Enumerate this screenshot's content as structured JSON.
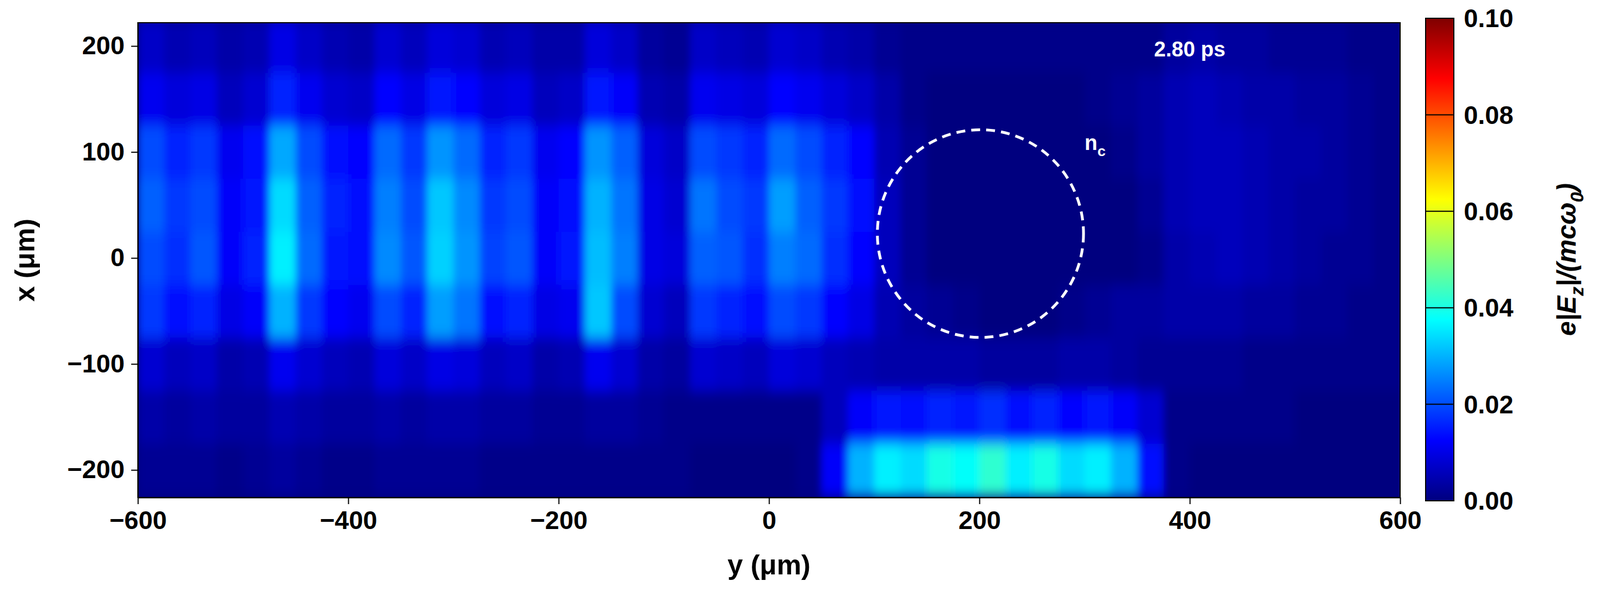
{
  "chart_data": {
    "type": "heatmap",
    "x_label": "y (μm)",
    "y_label": "x (μm)",
    "xlim": [
      -600,
      600
    ],
    "ylim": [
      -226,
      222
    ],
    "xticks": [
      {
        "value": -600,
        "label": "−600"
      },
      {
        "value": -400,
        "label": "−400"
      },
      {
        "value": -200,
        "label": "−200"
      },
      0,
      200,
      400,
      600
    ],
    "yticks": [
      {
        "value": -200,
        "label": "−200"
      },
      {
        "value": -100,
        "label": "−100"
      },
      0,
      100,
      200
    ],
    "x_bins": [
      -600,
      -575,
      -550,
      -525,
      -500,
      -475,
      -450,
      -425,
      -400,
      -375,
      -350,
      -325,
      -300,
      -275,
      -250,
      -225,
      -200,
      -175,
      -150,
      -125,
      -100,
      -75,
      -50,
      -25,
      0,
      25,
      50,
      75,
      100,
      125,
      150,
      175,
      200,
      225,
      250,
      275,
      300,
      325,
      350,
      375,
      400,
      425,
      450,
      475,
      500,
      525,
      550,
      575,
      600
    ],
    "y_bins": [
      -225,
      -175,
      -125,
      -75,
      -25,
      25,
      75,
      125,
      175,
      225
    ],
    "z": [
      [
        0.002,
        0.002,
        0.002,
        0.001,
        0.002,
        0.003,
        0.002,
        0.001,
        0.001,
        0.002,
        0.002,
        0.002,
        0.002,
        0.001,
        0.001,
        0.001,
        0.001,
        0.001,
        0.001,
        0.001,
        0.001,
        0,
        0,
        0,
        0,
        0.001,
        0.012,
        0.03,
        0.036,
        0.034,
        0.04,
        0.038,
        0.042,
        0.036,
        0.04,
        0.034,
        0.036,
        0.03,
        0.014,
        0.001,
        0,
        0,
        0,
        0,
        0,
        0,
        0,
        0
      ],
      [
        0.004,
        0.003,
        0.004,
        0.003,
        0.003,
        0.005,
        0.004,
        0.003,
        0.003,
        0.004,
        0.003,
        0.004,
        0.004,
        0.003,
        0.003,
        0.002,
        0.002,
        0.003,
        0.003,
        0.002,
        0.001,
        0.001,
        0.001,
        0.001,
        0.001,
        0.001,
        0.006,
        0.012,
        0.015,
        0.014,
        0.016,
        0.015,
        0.017,
        0.014,
        0.016,
        0.013,
        0.015,
        0.012,
        0.008,
        0.001,
        0.001,
        0.001,
        0.001,
        0.001,
        0,
        0,
        0,
        0
      ],
      [
        0.008,
        0.006,
        0.007,
        0.004,
        0.005,
        0.011,
        0.008,
        0.006,
        0.005,
        0.009,
        0.007,
        0.01,
        0.009,
        0.006,
        0.007,
        0.004,
        0.005,
        0.011,
        0.008,
        0.004,
        0.003,
        0.008,
        0.007,
        0.006,
        0.009,
        0.008,
        0.006,
        0.005,
        0.004,
        0.004,
        0.004,
        0.004,
        0.003,
        0.003,
        0.003,
        0.004,
        0.004,
        0.003,
        0.002,
        0.002,
        0.002,
        0.002,
        0.001,
        0.001,
        0.001,
        0.001,
        0.001,
        0.001
      ],
      [
        0.018,
        0.014,
        0.016,
        0.01,
        0.012,
        0.03,
        0.018,
        0.013,
        0.011,
        0.02,
        0.016,
        0.028,
        0.024,
        0.014,
        0.016,
        0.01,
        0.011,
        0.032,
        0.02,
        0.008,
        0.006,
        0.018,
        0.016,
        0.014,
        0.02,
        0.018,
        0.013,
        0.01,
        0.005,
        0.003,
        0.002,
        0.001,
        0,
        0,
        0,
        0.001,
        0.002,
        0.003,
        0.003,
        0.004,
        0.004,
        0.004,
        0.003,
        0.003,
        0.002,
        0.002,
        0.001,
        0.001
      ],
      [
        0.02,
        0.017,
        0.021,
        0.012,
        0.016,
        0.036,
        0.023,
        0.015,
        0.014,
        0.026,
        0.021,
        0.033,
        0.027,
        0.019,
        0.021,
        0.012,
        0.015,
        0.031,
        0.025,
        0.01,
        0.009,
        0.022,
        0.021,
        0.017,
        0.025,
        0.023,
        0.017,
        0.013,
        0.006,
        0.002,
        0,
        0,
        0,
        0,
        0,
        0,
        0,
        0,
        0.001,
        0.004,
        0.005,
        0.006,
        0.005,
        0.004,
        0.003,
        0.002,
        0.002,
        0.001
      ],
      [
        0.022,
        0.018,
        0.02,
        0.012,
        0.015,
        0.034,
        0.022,
        0.016,
        0.014,
        0.025,
        0.02,
        0.032,
        0.026,
        0.018,
        0.02,
        0.012,
        0.014,
        0.03,
        0.024,
        0.01,
        0.008,
        0.024,
        0.02,
        0.018,
        0.028,
        0.022,
        0.018,
        0.014,
        0.006,
        0.002,
        0,
        0,
        0,
        0,
        0,
        0,
        0,
        0,
        0.002,
        0.005,
        0.006,
        0.006,
        0.005,
        0.004,
        0.003,
        0.003,
        0.002,
        0.001
      ],
      [
        0.02,
        0.016,
        0.018,
        0.011,
        0.014,
        0.029,
        0.02,
        0.014,
        0.013,
        0.023,
        0.018,
        0.027,
        0.023,
        0.016,
        0.018,
        0.011,
        0.013,
        0.027,
        0.022,
        0.009,
        0.007,
        0.02,
        0.018,
        0.016,
        0.023,
        0.02,
        0.016,
        0.013,
        0.005,
        0.002,
        0,
        0,
        0,
        0,
        0,
        0,
        0,
        0.001,
        0.003,
        0.005,
        0.006,
        0.006,
        0.005,
        0.004,
        0.004,
        0.003,
        0.002,
        0.001
      ],
      [
        0.011,
        0.009,
        0.01,
        0.006,
        0.008,
        0.016,
        0.011,
        0.008,
        0.007,
        0.013,
        0.01,
        0.015,
        0.013,
        0.009,
        0.01,
        0.006,
        0.007,
        0.015,
        0.012,
        0.005,
        0.004,
        0.011,
        0.01,
        0.009,
        0.013,
        0.011,
        0.009,
        0.007,
        0.004,
        0.001,
        0,
        0,
        0,
        0,
        0,
        0,
        0.001,
        0.002,
        0.003,
        0.005,
        0.006,
        0.005,
        0.004,
        0.004,
        0.003,
        0.003,
        0.002,
        0.001
      ],
      [
        0.007,
        0.005,
        0.006,
        0.004,
        0.005,
        0.01,
        0.007,
        0.005,
        0.004,
        0.008,
        0.006,
        0.009,
        0.008,
        0.005,
        0.006,
        0.004,
        0.004,
        0.009,
        0.007,
        0.003,
        0.002,
        0.007,
        0.006,
        0.005,
        0.008,
        0.007,
        0.005,
        0.004,
        0.002,
        0.001,
        0.001,
        0.001,
        0.001,
        0.001,
        0.001,
        0.001,
        0.001,
        0.001,
        0.001,
        0.003,
        0.004,
        0.003,
        0.003,
        0.002,
        0.002,
        0.002,
        0.001,
        0.001
      ]
    ],
    "colorbar": {
      "range": [
        0,
        0.1
      ],
      "ticks": [
        {
          "value": 0,
          "label": "0.00"
        },
        0.02,
        0.04,
        0.06,
        0.08,
        {
          "value": 0.1,
          "label": "0.10"
        }
      ],
      "label": [
        {
          "text": "e|E"
        },
        {
          "text": "z",
          "sub": true
        },
        {
          "text": "|/(mcω"
        },
        {
          "text": "0",
          "sub": true
        },
        {
          "text": ")"
        }
      ]
    },
    "contour": {
      "center": [
        201,
        23
      ],
      "radius": 98,
      "color": "#ffffff",
      "line_style": "dashed"
    },
    "annotations": [
      {
        "parts": [
          {
            "text": "2.80 ps"
          }
        ],
        "x": 400,
        "y": 197
      },
      {
        "parts": [
          {
            "text": "n"
          },
          {
            "text": "c",
            "sub": true
          }
        ],
        "x": 310,
        "y": 109
      }
    ]
  }
}
